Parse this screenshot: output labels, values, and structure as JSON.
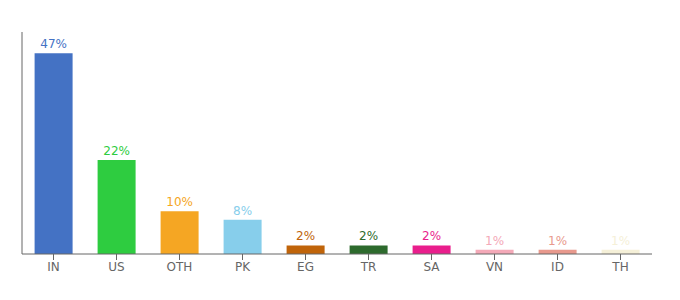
{
  "chart_data": {
    "type": "bar",
    "categories": [
      "IN",
      "US",
      "OTH",
      "PK",
      "EG",
      "TR",
      "SA",
      "VN",
      "ID",
      "TH"
    ],
    "values": [
      47,
      22,
      10,
      8,
      2,
      2,
      2,
      1,
      1,
      1
    ],
    "value_labels": [
      "47%",
      "22%",
      "10%",
      "8%",
      "2%",
      "2%",
      "2%",
      "1%",
      "1%",
      "1%"
    ],
    "colors": [
      "#4472c4",
      "#2ecc40",
      "#f5a623",
      "#87ceeb",
      "#c0640a",
      "#2d6a2d",
      "#e91e8c",
      "#f4a9b8",
      "#e8998d",
      "#f5f0d8"
    ],
    "ylim": [
      0,
      52
    ],
    "grid": false,
    "data_labels": true,
    "tick_labels": "x"
  }
}
